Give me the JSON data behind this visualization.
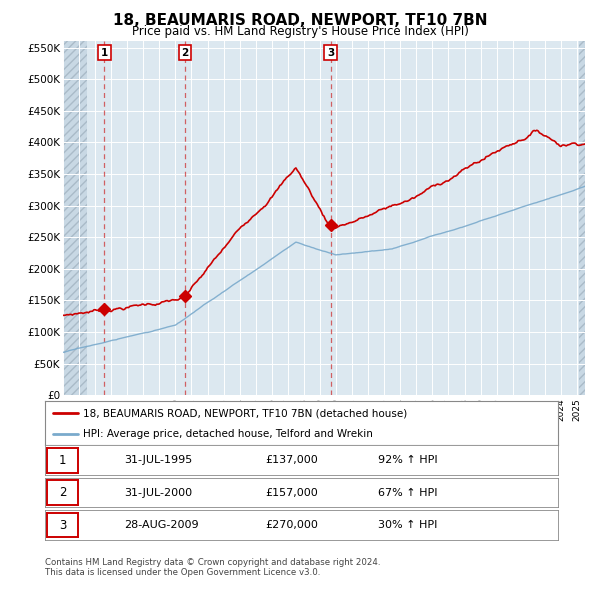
{
  "title": "18, BEAUMARIS ROAD, NEWPORT, TF10 7BN",
  "subtitle": "Price paid vs. HM Land Registry's House Price Index (HPI)",
  "legend_line1": "18, BEAUMARIS ROAD, NEWPORT, TF10 7BN (detached house)",
  "legend_line2": "HPI: Average price, detached house, Telford and Wrekin",
  "sale_times": [
    1995.583,
    2000.583,
    2009.667
  ],
  "sale_prices": [
    137000,
    157000,
    270000
  ],
  "sale_labels": [
    "1",
    "2",
    "3"
  ],
  "sale_label_dates": [
    "31-JUL-1995",
    "31-JUL-2000",
    "28-AUG-2009"
  ],
  "sale_pct": [
    "92% ↑ HPI",
    "67% ↑ HPI",
    "30% ↑ HPI"
  ],
  "sale_amounts": [
    "£137,000",
    "£157,000",
    "£270,000"
  ],
  "property_color": "#cc0000",
  "hpi_color": "#7aaacc",
  "dashed_line_color": "#cc0000",
  "ylim": [
    0,
    560000
  ],
  "yticks": [
    0,
    50000,
    100000,
    150000,
    200000,
    250000,
    300000,
    350000,
    400000,
    450000,
    500000,
    550000
  ],
  "ytick_labels": [
    "£0",
    "£50K",
    "£100K",
    "£150K",
    "£200K",
    "£250K",
    "£300K",
    "£350K",
    "£400K",
    "£450K",
    "£500K",
    "£550K"
  ],
  "footer_line1": "Contains HM Land Registry data © Crown copyright and database right 2024.",
  "footer_line2": "This data is licensed under the Open Government Licence v3.0.",
  "background_color": "#ffffff",
  "plot_bg_color": "#dce8f0"
}
